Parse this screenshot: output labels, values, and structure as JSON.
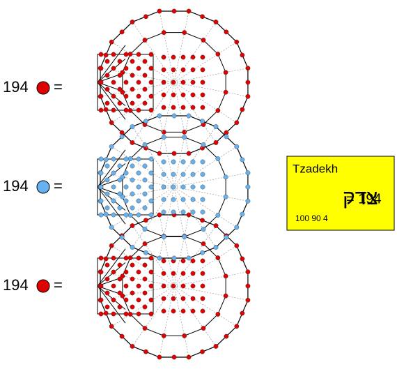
{
  "rows": [
    {
      "count": "194",
      "sign": "="
    },
    {
      "count": "194",
      "sign": "="
    },
    {
      "count": "194",
      "sign": "="
    }
  ],
  "box": {
    "title": "Tzadekh",
    "word": "צדק",
    "equation": "= 194",
    "letters": "100 90 4"
  }
}
